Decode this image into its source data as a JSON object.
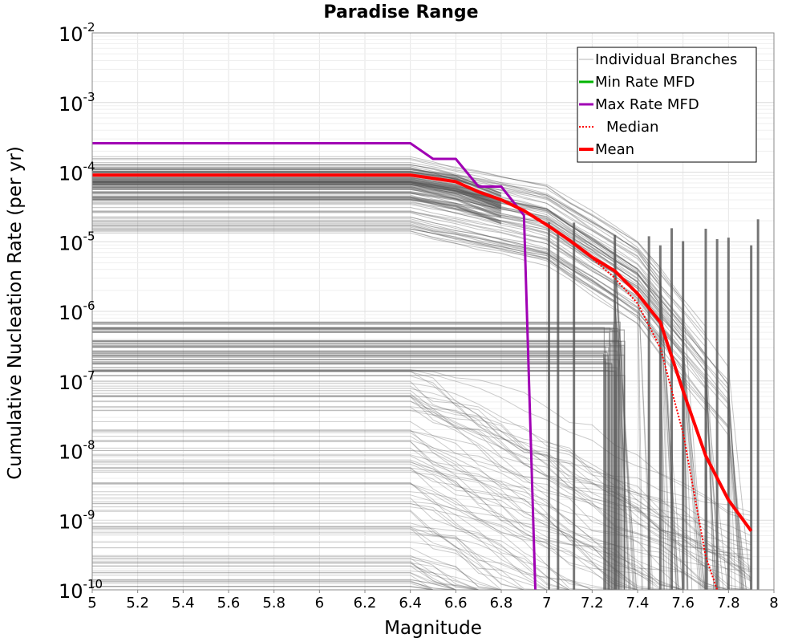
{
  "chart_data": {
    "type": "line",
    "title": "Paradise Range",
    "xlabel": "Magnitude",
    "ylabel": "Cumulative Nucleation Rate (per yr)",
    "xlim": [
      5,
      8
    ],
    "ylim": [
      1e-10,
      0.01
    ],
    "yscale": "log",
    "grid": true,
    "legend_position": "top-right",
    "x_ticks": [
      "5",
      "5.2",
      "5.4",
      "5.6",
      "5.8",
      "6",
      "6.2",
      "6.4",
      "6.6",
      "6.8",
      "7",
      "7.2",
      "7.4",
      "7.6",
      "7.8",
      "8"
    ],
    "x_tick_values": [
      5,
      5.2,
      5.4,
      5.6,
      5.8,
      6,
      6.2,
      6.4,
      6.6,
      6.8,
      7,
      7.2,
      7.4,
      7.6,
      7.8,
      8
    ],
    "y_ticks": [
      {
        "value": 0.01,
        "base": "10",
        "exp": "-2"
      },
      {
        "value": 0.001,
        "base": "10",
        "exp": "-3"
      },
      {
        "value": 0.0001,
        "base": "10",
        "exp": "-4"
      },
      {
        "value": 1e-05,
        "base": "10",
        "exp": "-5"
      },
      {
        "value": 1e-06,
        "base": "10",
        "exp": "-6"
      },
      {
        "value": 1e-07,
        "base": "10",
        "exp": "-7"
      },
      {
        "value": 1e-08,
        "base": "10",
        "exp": "-8"
      },
      {
        "value": 1e-09,
        "base": "10",
        "exp": "-9"
      },
      {
        "value": 1e-10,
        "base": "10",
        "exp": "-10"
      }
    ],
    "legend": [
      {
        "label": "Individual Branches",
        "color": "#b4b4b4",
        "style": "thin"
      },
      {
        "label": "Min Rate MFD",
        "color": "#00b400",
        "style": "solid"
      },
      {
        "label": "Max Rate MFD",
        "color": "#a000b4",
        "style": "solid"
      },
      {
        "label": "Median",
        "color": "#ff0000",
        "style": "dotted"
      },
      {
        "label": "Mean",
        "color": "#ff0000",
        "style": "thick"
      }
    ],
    "colors": {
      "branches": "#555555",
      "min_rate": "#00b400",
      "max_rate": "#a000b4",
      "median": "#ff0000",
      "mean": "#ff0000"
    },
    "series": [
      {
        "name": "Max Rate MFD",
        "x": [
          5.0,
          6.4,
          6.5,
          6.6,
          6.7,
          6.8,
          6.9,
          6.95
        ],
        "y": [
          0.00026,
          0.00026,
          0.000155,
          0.000155,
          6.2e-05,
          6.2e-05,
          2.4e-05,
          1e-10
        ]
      },
      {
        "name": "Median",
        "x": [
          5.0,
          6.4,
          6.6,
          6.7,
          6.8,
          6.9,
          7.0,
          7.1,
          7.2,
          7.3,
          7.4,
          7.5,
          7.6,
          7.7,
          7.75
        ],
        "y": [
          9.1e-05,
          9.1e-05,
          7.3e-05,
          5.2e-05,
          4e-05,
          2.8e-05,
          1.75e-05,
          1.05e-05,
          5.8e-06,
          3e-06,
          1.3e-06,
          3e-07,
          1.8e-08,
          3e-10,
          1e-10
        ]
      },
      {
        "name": "Mean",
        "x": [
          5.0,
          6.4,
          6.6,
          6.7,
          6.8,
          6.9,
          7.0,
          7.1,
          7.2,
          7.3,
          7.4,
          7.5,
          7.6,
          7.7,
          7.8,
          7.9
        ],
        "y": [
          9.1e-05,
          9.1e-05,
          7.3e-05,
          5.2e-05,
          4e-05,
          2.8e-05,
          1.75e-05,
          1.05e-05,
          6e-06,
          3.8e-06,
          1.8e-06,
          7e-07,
          7.2e-08,
          8.4e-09,
          1.95e-09,
          7e-10
        ]
      }
    ],
    "branch_bands": [
      {
        "label_range": [
          1.3e-05,
          0.00026
        ],
        "flat_until": 6.4
      },
      {
        "label_range": [
          1.5e-07,
          8e-07
        ],
        "flat_until": 6.8
      },
      {
        "label_range": [
          1e-10,
          1.5e-07
        ],
        "flat_until": 6.4
      }
    ]
  }
}
